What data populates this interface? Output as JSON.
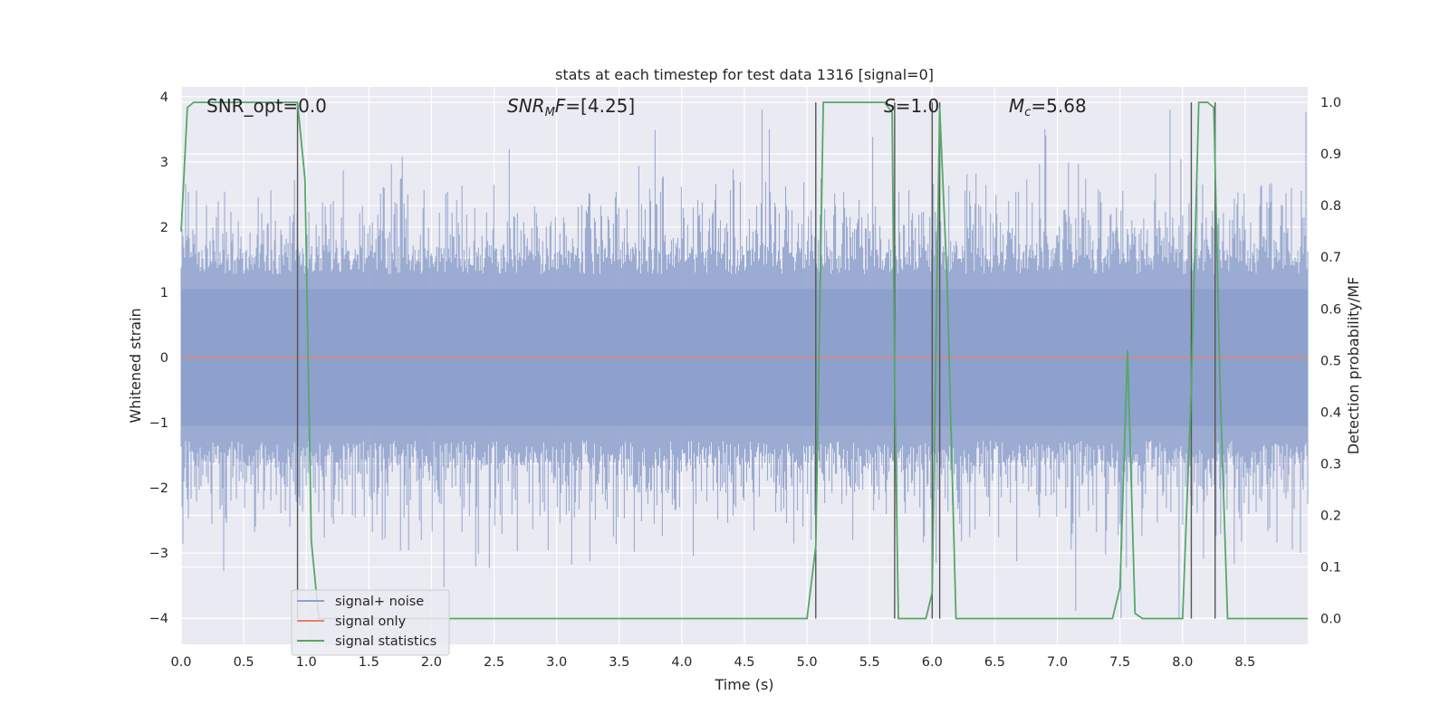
{
  "chart_data": {
    "type": "line",
    "title": "stats at each timestep for test data 1316 [signal=0]",
    "xlabel": "Time (s)",
    "ylabel": "Whitened strain",
    "y2label": "Detection probability/MF",
    "xlim": [
      0,
      9.0
    ],
    "ylim": [
      -4.4,
      4.15
    ],
    "y2lim": [
      -0.05,
      1.03
    ],
    "x_ticks": [
      "0.0",
      "0.5",
      "1.0",
      "1.5",
      "2.0",
      "2.5",
      "3.0",
      "3.5",
      "4.0",
      "4.5",
      "5.0",
      "5.5",
      "6.0",
      "6.5",
      "7.0",
      "7.5",
      "8.0",
      "8.5"
    ],
    "y_ticks": [
      "4",
      "3",
      "2",
      "1",
      "0",
      "−1",
      "−2",
      "−3",
      "−4"
    ],
    "y2_ticks": [
      "1.0",
      "0.9",
      "0.8",
      "0.7",
      "0.6",
      "0.5",
      "0.4",
      "0.3",
      "0.2",
      "0.1",
      "0.0"
    ],
    "grid": true,
    "legend_position": "lower-left",
    "annotations": {
      "snr_opt": "SNR_opt=0.0",
      "snr_mf": "=[4.25]",
      "s": "=1.0",
      "mc": "=5.68"
    },
    "series": [
      {
        "name": "signal+ noise",
        "color": "#8da0cb",
        "description_type": "noise band",
        "x_range": [
          0,
          9.0
        ],
        "typical_range": [
          -1.7,
          1.7
        ],
        "extreme_range": [
          -4.0,
          3.8
        ]
      },
      {
        "name": "signal only",
        "color": "#e5826a",
        "x": [
          0,
          9.0
        ],
        "y": [
          0,
          0
        ]
      },
      {
        "name": "signal statistics",
        "color": "#55a868",
        "axis": "right",
        "x": [
          0.0,
          0.05,
          0.1,
          0.3,
          0.6,
          0.93,
          0.99,
          1.04,
          1.1,
          1.5,
          2.0,
          3.0,
          4.0,
          4.6,
          5.0,
          5.07,
          5.13,
          5.2,
          5.5,
          5.62,
          5.68,
          5.7,
          5.73,
          5.8,
          5.9,
          5.95,
          6.0,
          6.06,
          6.12,
          6.19,
          6.3,
          6.5,
          7.0,
          7.3,
          7.44,
          7.5,
          7.56,
          7.62,
          7.68,
          7.8,
          8.0,
          8.07,
          8.13,
          8.2,
          8.25,
          8.3,
          8.36,
          8.45,
          8.6,
          9.0
        ],
        "y": [
          0.75,
          0.99,
          1.0,
          1.0,
          1.0,
          1.0,
          0.85,
          0.15,
          0.0,
          0.0,
          0.0,
          0.0,
          0.0,
          0.0,
          0.0,
          0.14,
          1.0,
          1.0,
          1.0,
          1.0,
          0.98,
          0.45,
          0.0,
          0.0,
          0.0,
          0.0,
          0.05,
          0.99,
          0.65,
          0.0,
          0.0,
          0.0,
          0.0,
          0.0,
          0.0,
          0.06,
          0.52,
          0.01,
          0.0,
          0.0,
          0.0,
          0.45,
          1.0,
          1.0,
          0.99,
          0.45,
          0.0,
          0.0,
          0.0,
          0.0
        ]
      }
    ],
    "vertical_markers": [
      0.93,
      5.07,
      5.7,
      6.0,
      6.06,
      8.07,
      8.26
    ],
    "marker_y2_top": 1.0,
    "marker_color": "#555555"
  },
  "legend": [
    {
      "label": "signal+ noise",
      "color": "#8da0cb"
    },
    {
      "label": "signal only",
      "color": "#e5826a"
    },
    {
      "label": "signal statistics",
      "color": "#55a868"
    }
  ]
}
